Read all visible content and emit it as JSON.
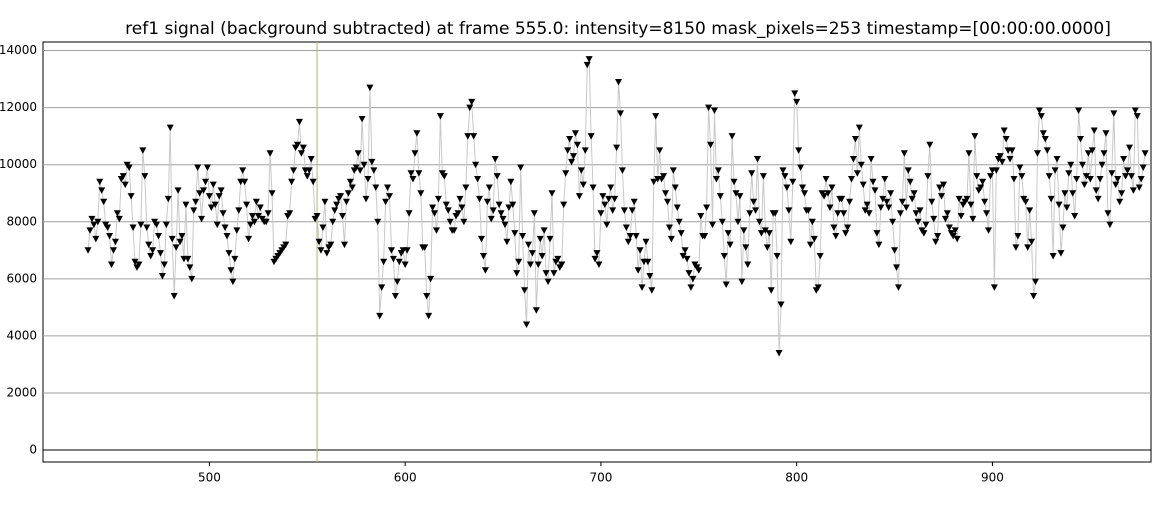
{
  "chart_data": {
    "type": "scatter-line",
    "title": "ref1 signal (background subtracted) at frame 555.0: intensity=8150 mask_pixels=253 timestamp=[00:00:00.0000]",
    "xlim": [
      415,
      981
    ],
    "ylim": [
      -420,
      14300
    ],
    "xticks": [
      500,
      600,
      700,
      800,
      900
    ],
    "yticks": [
      0,
      2000,
      4000,
      6000,
      8000,
      10000,
      12000,
      14000
    ],
    "grid": true,
    "cursor_x": 555,
    "cursor_color": "#b5b56a",
    "series": [
      {
        "color": "#000000",
        "line_color": "#c8c8c8",
        "x": [
          438,
          439,
          440,
          441,
          442,
          443,
          444,
          445,
          446,
          447,
          448,
          449,
          450,
          451,
          452,
          453,
          454,
          455,
          456,
          457,
          458,
          459,
          460,
          461,
          462,
          463,
          464,
          465,
          466,
          467,
          468,
          469,
          470,
          471,
          472,
          473,
          474,
          475,
          476,
          477,
          478,
          479,
          480,
          481,
          482,
          483,
          484,
          485,
          486,
          487,
          488,
          489,
          490,
          491,
          492,
          493,
          494,
          495,
          496,
          497,
          498,
          499,
          500,
          501,
          502,
          503,
          504,
          505,
          506,
          507,
          508,
          509,
          510,
          511,
          512,
          513,
          514,
          515,
          516,
          517,
          518,
          519,
          520,
          521,
          522,
          523,
          524,
          525,
          526,
          527,
          528,
          529,
          530,
          531,
          532,
          533,
          534,
          535,
          536,
          537,
          538,
          539,
          540,
          541,
          542,
          543,
          544,
          545,
          546,
          547,
          548,
          549,
          550,
          551,
          552,
          553,
          554,
          555,
          556,
          557,
          558,
          559,
          560,
          561,
          562,
          563,
          564,
          565,
          566,
          567,
          568,
          569,
          570,
          571,
          572,
          573,
          574,
          575,
          576,
          577,
          578,
          579,
          580,
          581,
          582,
          583,
          584,
          585,
          586,
          587,
          588,
          589,
          590,
          591,
          592,
          593,
          594,
          595,
          596,
          597,
          598,
          599,
          600,
          601,
          602,
          603,
          604,
          605,
          606,
          607,
          608,
          609,
          610,
          611,
          612,
          613,
          614,
          615,
          616,
          617,
          618,
          619,
          620,
          621,
          622,
          623,
          624,
          625,
          626,
          627,
          628,
          629,
          630,
          631,
          632,
          633,
          634,
          635,
          636,
          637,
          638,
          639,
          640,
          641,
          642,
          643,
          644,
          645,
          646,
          647,
          648,
          649,
          650,
          651,
          652,
          653,
          654,
          655,
          656,
          657,
          658,
          659,
          660,
          661,
          662,
          663,
          664,
          665,
          666,
          667,
          668,
          669,
          670,
          671,
          672,
          673,
          674,
          675,
          676,
          677,
          678,
          679,
          680,
          681,
          682,
          683,
          684,
          685,
          686,
          687,
          688,
          689,
          690,
          691,
          692,
          693,
          694,
          695,
          696,
          697,
          698,
          699,
          700,
          701,
          702,
          703,
          704,
          705,
          706,
          707,
          708,
          709,
          710,
          711,
          712,
          713,
          714,
          715,
          716,
          717,
          718,
          719,
          720,
          721,
          722,
          723,
          724,
          725,
          726,
          727,
          728,
          729,
          730,
          731,
          732,
          733,
          734,
          735,
          736,
          737,
          738,
          739,
          740,
          741,
          742,
          743,
          744,
          745,
          746,
          747,
          748,
          749,
          750,
          751,
          752,
          753,
          754,
          755,
          756,
          757,
          758,
          759,
          760,
          761,
          762,
          763,
          764,
          765,
          766,
          767,
          768,
          769,
          770,
          771,
          772,
          773,
          774,
          775,
          776,
          777,
          778,
          779,
          780,
          781,
          782,
          783,
          784,
          785,
          786,
          787,
          788,
          789,
          790,
          791,
          792,
          793,
          794,
          795,
          796,
          797,
          798,
          799,
          800,
          801,
          802,
          803,
          804,
          805,
          806,
          807,
          808,
          809,
          810,
          811,
          812,
          813,
          814,
          815,
          816,
          817,
          818,
          819,
          820,
          821,
          822,
          823,
          824,
          825,
          826,
          827,
          828,
          829,
          830,
          831,
          832,
          833,
          834,
          835,
          836,
          837,
          838,
          839,
          840,
          841,
          842,
          843,
          844,
          845,
          846,
          847,
          848,
          849,
          850,
          851,
          852,
          853,
          854,
          855,
          856,
          857,
          858,
          859,
          860,
          861,
          862,
          863,
          864,
          865,
          866,
          867,
          868,
          869,
          870,
          871,
          872,
          873,
          874,
          875,
          876,
          877,
          878,
          879,
          880,
          881,
          882,
          883,
          884,
          885,
          886,
          887,
          888,
          889,
          890,
          891,
          892,
          893,
          894,
          895,
          896,
          897,
          898,
          899,
          900,
          901,
          902,
          903,
          904,
          905,
          906,
          907,
          908,
          909,
          910,
          911,
          912,
          913,
          914,
          915,
          916,
          917,
          918,
          919,
          920,
          921,
          922,
          923,
          924,
          925,
          926,
          927,
          928,
          929,
          930,
          931,
          932,
          933,
          934,
          935,
          936,
          937,
          938,
          939,
          940,
          941,
          942,
          943,
          944,
          945,
          946,
          947,
          948,
          949,
          950,
          951,
          952,
          953,
          954,
          955,
          956,
          957,
          958,
          959,
          960,
          961,
          962,
          963,
          964,
          965,
          966,
          967,
          968,
          969,
          970,
          971,
          972,
          973,
          974,
          975,
          976,
          977,
          978
        ],
        "values": [
          7000,
          7700,
          8100,
          7900,
          7400,
          8000,
          9400,
          9100,
          8700,
          7900,
          7800,
          7500,
          6500,
          7000,
          7300,
          8300,
          8100,
          9500,
          9600,
          9300,
          10000,
          9900,
          8900,
          7800,
          6600,
          6400,
          6500,
          7900,
          10500,
          9600,
          7800,
          7200,
          6800,
          7000,
          8000,
          7900,
          7500,
          6900,
          6100,
          6500,
          7900,
          8800,
          11300,
          7400,
          5400,
          7100,
          9100,
          7300,
          7500,
          6700,
          8600,
          6700,
          6400,
          6000,
          8400,
          8700,
          9900,
          9000,
          8100,
          9100,
          9400,
          9900,
          8900,
          8500,
          9300,
          8600,
          7900,
          8900,
          9100,
          8300,
          7800,
          7500,
          6900,
          6300,
          5900,
          6700,
          7700,
          8400,
          9400,
          9800,
          9400,
          8600,
          7400,
          7900,
          8200,
          8000,
          8700,
          8200,
          8500,
          8100,
          8000,
          8000,
          8300,
          10400,
          9000,
          6600,
          6700,
          6800,
          6900,
          7000,
          7100,
          7200,
          8200,
          8300,
          9400,
          9800,
          10600,
          10700,
          11500,
          10400,
          10600,
          9800,
          9600,
          9800,
          10200,
          9400,
          8100,
          8200,
          7300,
          7000,
          7800,
          8700,
          6900,
          7100,
          7200,
          8000,
          8400,
          8600,
          8800,
          8900,
          8200,
          7200,
          8700,
          9000,
          9400,
          9200,
          9800,
          9900,
          10400,
          9800,
          11600,
          10000,
          8800,
          9500,
          12700,
          10100,
          9800,
          9200,
          8000,
          4700,
          5700,
          6600,
          8700,
          9200,
          8900,
          7000,
          6700,
          5400,
          5900,
          6600,
          6900,
          7000,
          6500,
          7000,
          8300,
          9700,
          9500,
          10400,
          11100,
          9700,
          9000,
          7100,
          7100,
          5400,
          4700,
          6000,
          8500,
          8300,
          7700,
          8800,
          11700,
          9700,
          9600,
          8600,
          8400,
          8000,
          7700,
          7700,
          8200,
          8300,
          8800,
          8500,
          8000,
          9200,
          11000,
          12000,
          12200,
          11000,
          10000,
          9500,
          8800,
          7400,
          6800,
          6300,
          8700,
          9200,
          8100,
          8400,
          10200,
          9600,
          8600,
          8300,
          8100,
          7900,
          7300,
          8500,
          9400,
          8600,
          7600,
          6200,
          6600,
          9900,
          7500,
          5600,
          4400,
          7200,
          6500,
          6900,
          8300,
          4900,
          6500,
          7400,
          6800,
          7700,
          6200,
          5900,
          7400,
          9000,
          6200,
          6600,
          6700,
          6400,
          6500,
          8600,
          9700,
          10500,
          10900,
          10100,
          10300,
          11100,
          10700,
          8900,
          9800,
          9300,
          10500,
          13500,
          13700,
          11000,
          9200,
          6700,
          6900,
          6500,
          8300,
          8900,
          8600,
          7900,
          8800,
          9200,
          8400,
          8800,
          10600,
          12900,
          11800,
          9800,
          8400,
          7800,
          7300,
          7500,
          8400,
          8700,
          7500,
          6300,
          7000,
          5700,
          6600,
          7300,
          6600,
          6100,
          5600,
          9400,
          11700,
          9500,
          10500,
          9500,
          9600,
          9000,
          8700,
          7800,
          7400,
          9800,
          9200,
          8500,
          8000,
          7600,
          6800,
          7000,
          6700,
          6200,
          5700,
          6000,
          6500,
          6400,
          6300,
          8200,
          7500,
          7500,
          8500,
          12000,
          10700,
          7900,
          11900,
          9500,
          9800,
          8900,
          8000,
          6800,
          5800,
          7600,
          7200,
          11000,
          9400,
          9000,
          8000,
          8900,
          5900,
          7700,
          7100,
          6500,
          8300,
          9700,
          8700,
          8400,
          10200,
          8000,
          7600,
          9600,
          7700,
          7100,
          7600,
          5600,
          8300,
          8300,
          6800,
          3400,
          5100,
          9800,
          9600,
          9200,
          8400,
          7300,
          9400,
          12500,
          12200,
          10500,
          9900,
          9200,
          9000,
          8400,
          8400,
          7200,
          8000,
          7400,
          5600,
          5700,
          6800,
          9000,
          8900,
          9500,
          9000,
          8500,
          9200,
          7800,
          7500,
          8300,
          8800,
          8800,
          8300,
          7600,
          7800,
          8700,
          9500,
          10200,
          10900,
          9700,
          11300,
          10000,
          9300,
          8400,
          8600,
          8300,
          10200,
          9400,
          9100,
          7600,
          7200,
          8500,
          8800,
          9500,
          8700,
          8500,
          9000,
          8000,
          7000,
          6400,
          5700,
          8300,
          8700,
          10400,
          8500,
          9800,
          9400,
          8800,
          9000,
          8300,
          8000,
          8400,
          7700,
          7600,
          7900,
          9600,
          10700,
          8700,
          8100,
          7300,
          7500,
          9200,
          8900,
          9300,
          8100,
          8300,
          7800,
          7600,
          7500,
          7700,
          7400,
          8800,
          8200,
          8600,
          8700,
          8800,
          10400,
          8600,
          8100,
          11000,
          9600,
          9100,
          9200,
          9400,
          8700,
          8300,
          7700,
          9600,
          9800,
          5700,
          9800,
          10200,
          10300,
          10100,
          11200,
          10900,
          10500,
          10200,
          10500,
          9500,
          7100,
          7500,
          9900,
          9600,
          8800,
          8700,
          7100,
          8400,
          7300,
          5400,
          5900,
          10400,
          11900,
          11700,
          11100,
          10900,
          10500,
          9600,
          8800,
          6800,
          9800,
          10200,
          8600,
          6900,
          7800,
          9000,
          8500,
          9700,
          10000,
          9000,
          8200,
          9500,
          11900,
          10900,
          10000,
          9300,
          9600,
          10400,
          9500,
          10500,
          11200,
          9100,
          8800,
          9500,
          10000,
          10400,
          11100,
          8300,
          7900,
          9700,
          11800,
          9300,
          9500,
          8700,
          9000,
          10200,
          9600,
          9800,
          10600,
          9600,
          9100,
          11900,
          11700,
          9200,
          9500,
          9900,
          10400
        ]
      }
    ]
  }
}
